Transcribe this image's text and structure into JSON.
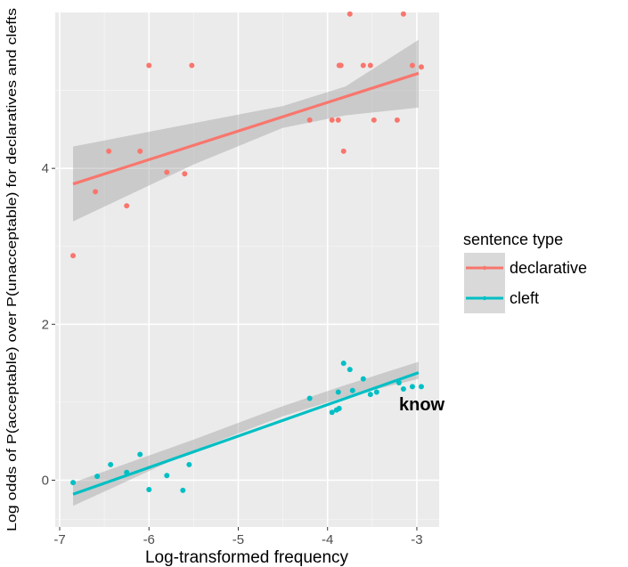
{
  "chart_data": {
    "type": "scatter",
    "title": "",
    "xlabel": "Log-transformed frequency",
    "ylabel": "Log odds of P(acceptable) over P(unacceptable) for declaratives and clefts",
    "xlim": [
      -7.05,
      -2.75
    ],
    "ylim": [
      -0.6,
      6.0
    ],
    "x_ticks": [
      -7,
      -6,
      -5,
      -4,
      -3
    ],
    "y_ticks": [
      0,
      2,
      4
    ],
    "grid": true,
    "legend": {
      "title": "sentence type",
      "position": "right",
      "entries": [
        "declarative",
        "cleft"
      ]
    },
    "series": [
      {
        "name": "declarative",
        "color": "#f8766d",
        "points": [
          {
            "x": -6.85,
            "y": 2.88
          },
          {
            "x": -6.6,
            "y": 3.7
          },
          {
            "x": -6.45,
            "y": 4.22
          },
          {
            "x": -6.25,
            "y": 3.52
          },
          {
            "x": -6.1,
            "y": 4.22
          },
          {
            "x": -6.0,
            "y": 5.32
          },
          {
            "x": -5.8,
            "y": 3.95
          },
          {
            "x": -5.6,
            "y": 3.93
          },
          {
            "x": -5.52,
            "y": 5.32
          },
          {
            "x": -4.2,
            "y": 4.62
          },
          {
            "x": -3.95,
            "y": 4.62
          },
          {
            "x": -3.88,
            "y": 4.62
          },
          {
            "x": -3.87,
            "y": 5.32
          },
          {
            "x": -3.85,
            "y": 5.32
          },
          {
            "x": -3.82,
            "y": 4.22
          },
          {
            "x": -3.75,
            "y": 5.98
          },
          {
            "x": -3.6,
            "y": 5.32
          },
          {
            "x": -3.52,
            "y": 5.32
          },
          {
            "x": -3.48,
            "y": 4.62
          },
          {
            "x": -3.22,
            "y": 4.62
          },
          {
            "x": -3.15,
            "y": 5.98
          },
          {
            "x": -3.05,
            "y": 5.32
          },
          {
            "x": -2.95,
            "y": 5.3
          }
        ],
        "fit": {
          "x": [
            -6.85,
            -2.98
          ],
          "y": [
            3.8,
            5.22
          ]
        },
        "ci_band": {
          "x": [
            -6.85,
            -5.5,
            -4.5,
            -3.8,
            -2.98
          ],
          "lower": [
            3.32,
            4.05,
            4.52,
            4.68,
            4.78
          ],
          "upper": [
            4.28,
            4.58,
            4.8,
            5.05,
            5.65
          ]
        }
      },
      {
        "name": "cleft",
        "color": "#00bfc4",
        "points": [
          {
            "x": -6.85,
            "y": -0.03
          },
          {
            "x": -6.58,
            "y": 0.05
          },
          {
            "x": -6.43,
            "y": 0.2
          },
          {
            "x": -6.25,
            "y": 0.1
          },
          {
            "x": -6.1,
            "y": 0.33
          },
          {
            "x": -6.0,
            "y": -0.12
          },
          {
            "x": -5.8,
            "y": 0.06
          },
          {
            "x": -5.62,
            "y": -0.13
          },
          {
            "x": -5.55,
            "y": 0.2
          },
          {
            "x": -4.2,
            "y": 1.05
          },
          {
            "x": -3.95,
            "y": 0.87
          },
          {
            "x": -3.9,
            "y": 0.9
          },
          {
            "x": -3.88,
            "y": 1.13
          },
          {
            "x": -3.87,
            "y": 0.92
          },
          {
            "x": -3.82,
            "y": 1.5
          },
          {
            "x": -3.75,
            "y": 1.42
          },
          {
            "x": -3.72,
            "y": 1.15
          },
          {
            "x": -3.6,
            "y": 1.3
          },
          {
            "x": -3.52,
            "y": 1.1
          },
          {
            "x": -3.45,
            "y": 1.13
          },
          {
            "x": -3.2,
            "y": 1.25
          },
          {
            "x": -3.15,
            "y": 1.17
          },
          {
            "x": -3.05,
            "y": 1.2
          },
          {
            "x": -2.95,
            "y": 1.2
          }
        ],
        "fit": {
          "x": [
            -6.85,
            -2.98
          ],
          "y": [
            -0.18,
            1.38
          ]
        },
        "ci_band": {
          "x": [
            -6.85,
            -5.5,
            -4.5,
            -3.8,
            -2.98
          ],
          "lower": [
            -0.33,
            0.38,
            0.82,
            1.07,
            1.3
          ],
          "upper": [
            -0.03,
            0.52,
            0.95,
            1.22,
            1.52
          ]
        }
      }
    ],
    "annotations": [
      {
        "text": "know",
        "x": -3.2,
        "y": 0.97
      }
    ]
  }
}
